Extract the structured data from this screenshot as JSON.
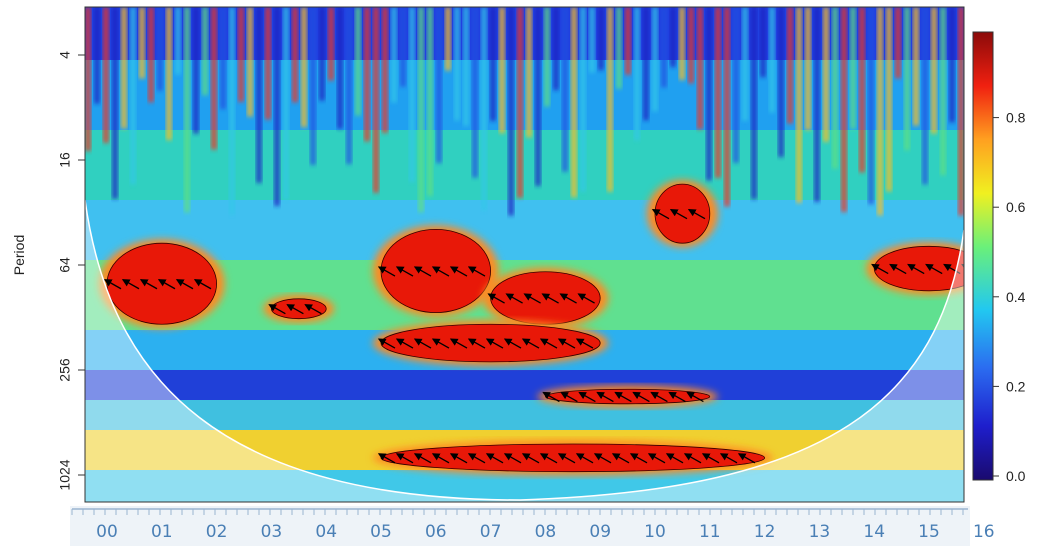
{
  "chart_data": {
    "type": "heatmap",
    "title": "",
    "ylabel": "Period",
    "xlabel": "",
    "y_scale": "log2",
    "y_inverted": true,
    "y_ticks": [
      "4",
      "16",
      "64",
      "256",
      "1024"
    ],
    "y_tick_values": [
      4,
      16,
      64,
      256,
      1024
    ],
    "ylim": [
      2,
      1600
    ],
    "x_ticks": [
      "00",
      "01",
      "02",
      "03",
      "04",
      "05",
      "06",
      "07",
      "08",
      "09",
      "10",
      "11",
      "12",
      "13",
      "14",
      "15",
      "16"
    ],
    "colorbar": {
      "ticks": [
        "0.0",
        "0.2",
        "0.4",
        "0.6",
        "0.8"
      ],
      "tick_values": [
        0.0,
        0.2,
        0.4,
        0.6,
        0.8
      ],
      "range": [
        0,
        1
      ],
      "colors": [
        "#1a0a6e",
        "#1e1ecc",
        "#2b6cf0",
        "#22c8f0",
        "#6af07a",
        "#f0f020",
        "#ffa020",
        "#f02010",
        "#8b0a0a"
      ]
    },
    "cone_of_influence": true,
    "significance_contours": true,
    "phase_arrows": true,
    "high_coherence_regions": [
      {
        "x_range": [
          "00",
          "02"
        ],
        "period_range": [
          48,
          140
        ]
      },
      {
        "x_range": [
          "05",
          "07"
        ],
        "period_range": [
          40,
          120
        ]
      },
      {
        "x_range": [
          "07",
          "09"
        ],
        "period_range": [
          70,
          140
        ]
      },
      {
        "x_range": [
          "05",
          "09"
        ],
        "period_range": [
          140,
          230
        ]
      },
      {
        "x_range": [
          "03",
          "04"
        ],
        "period_range": [
          100,
          130
        ]
      },
      {
        "x_range": [
          "05",
          "12"
        ],
        "period_range": [
          680,
          980
        ]
      },
      {
        "x_range": [
          "08",
          "11"
        ],
        "period_range": [
          330,
          400
        ]
      },
      {
        "x_range": [
          "14",
          "16"
        ],
        "period_range": [
          50,
          90
        ]
      },
      {
        "x_range": [
          "10",
          "11"
        ],
        "period_range": [
          22,
          48
        ]
      }
    ]
  }
}
